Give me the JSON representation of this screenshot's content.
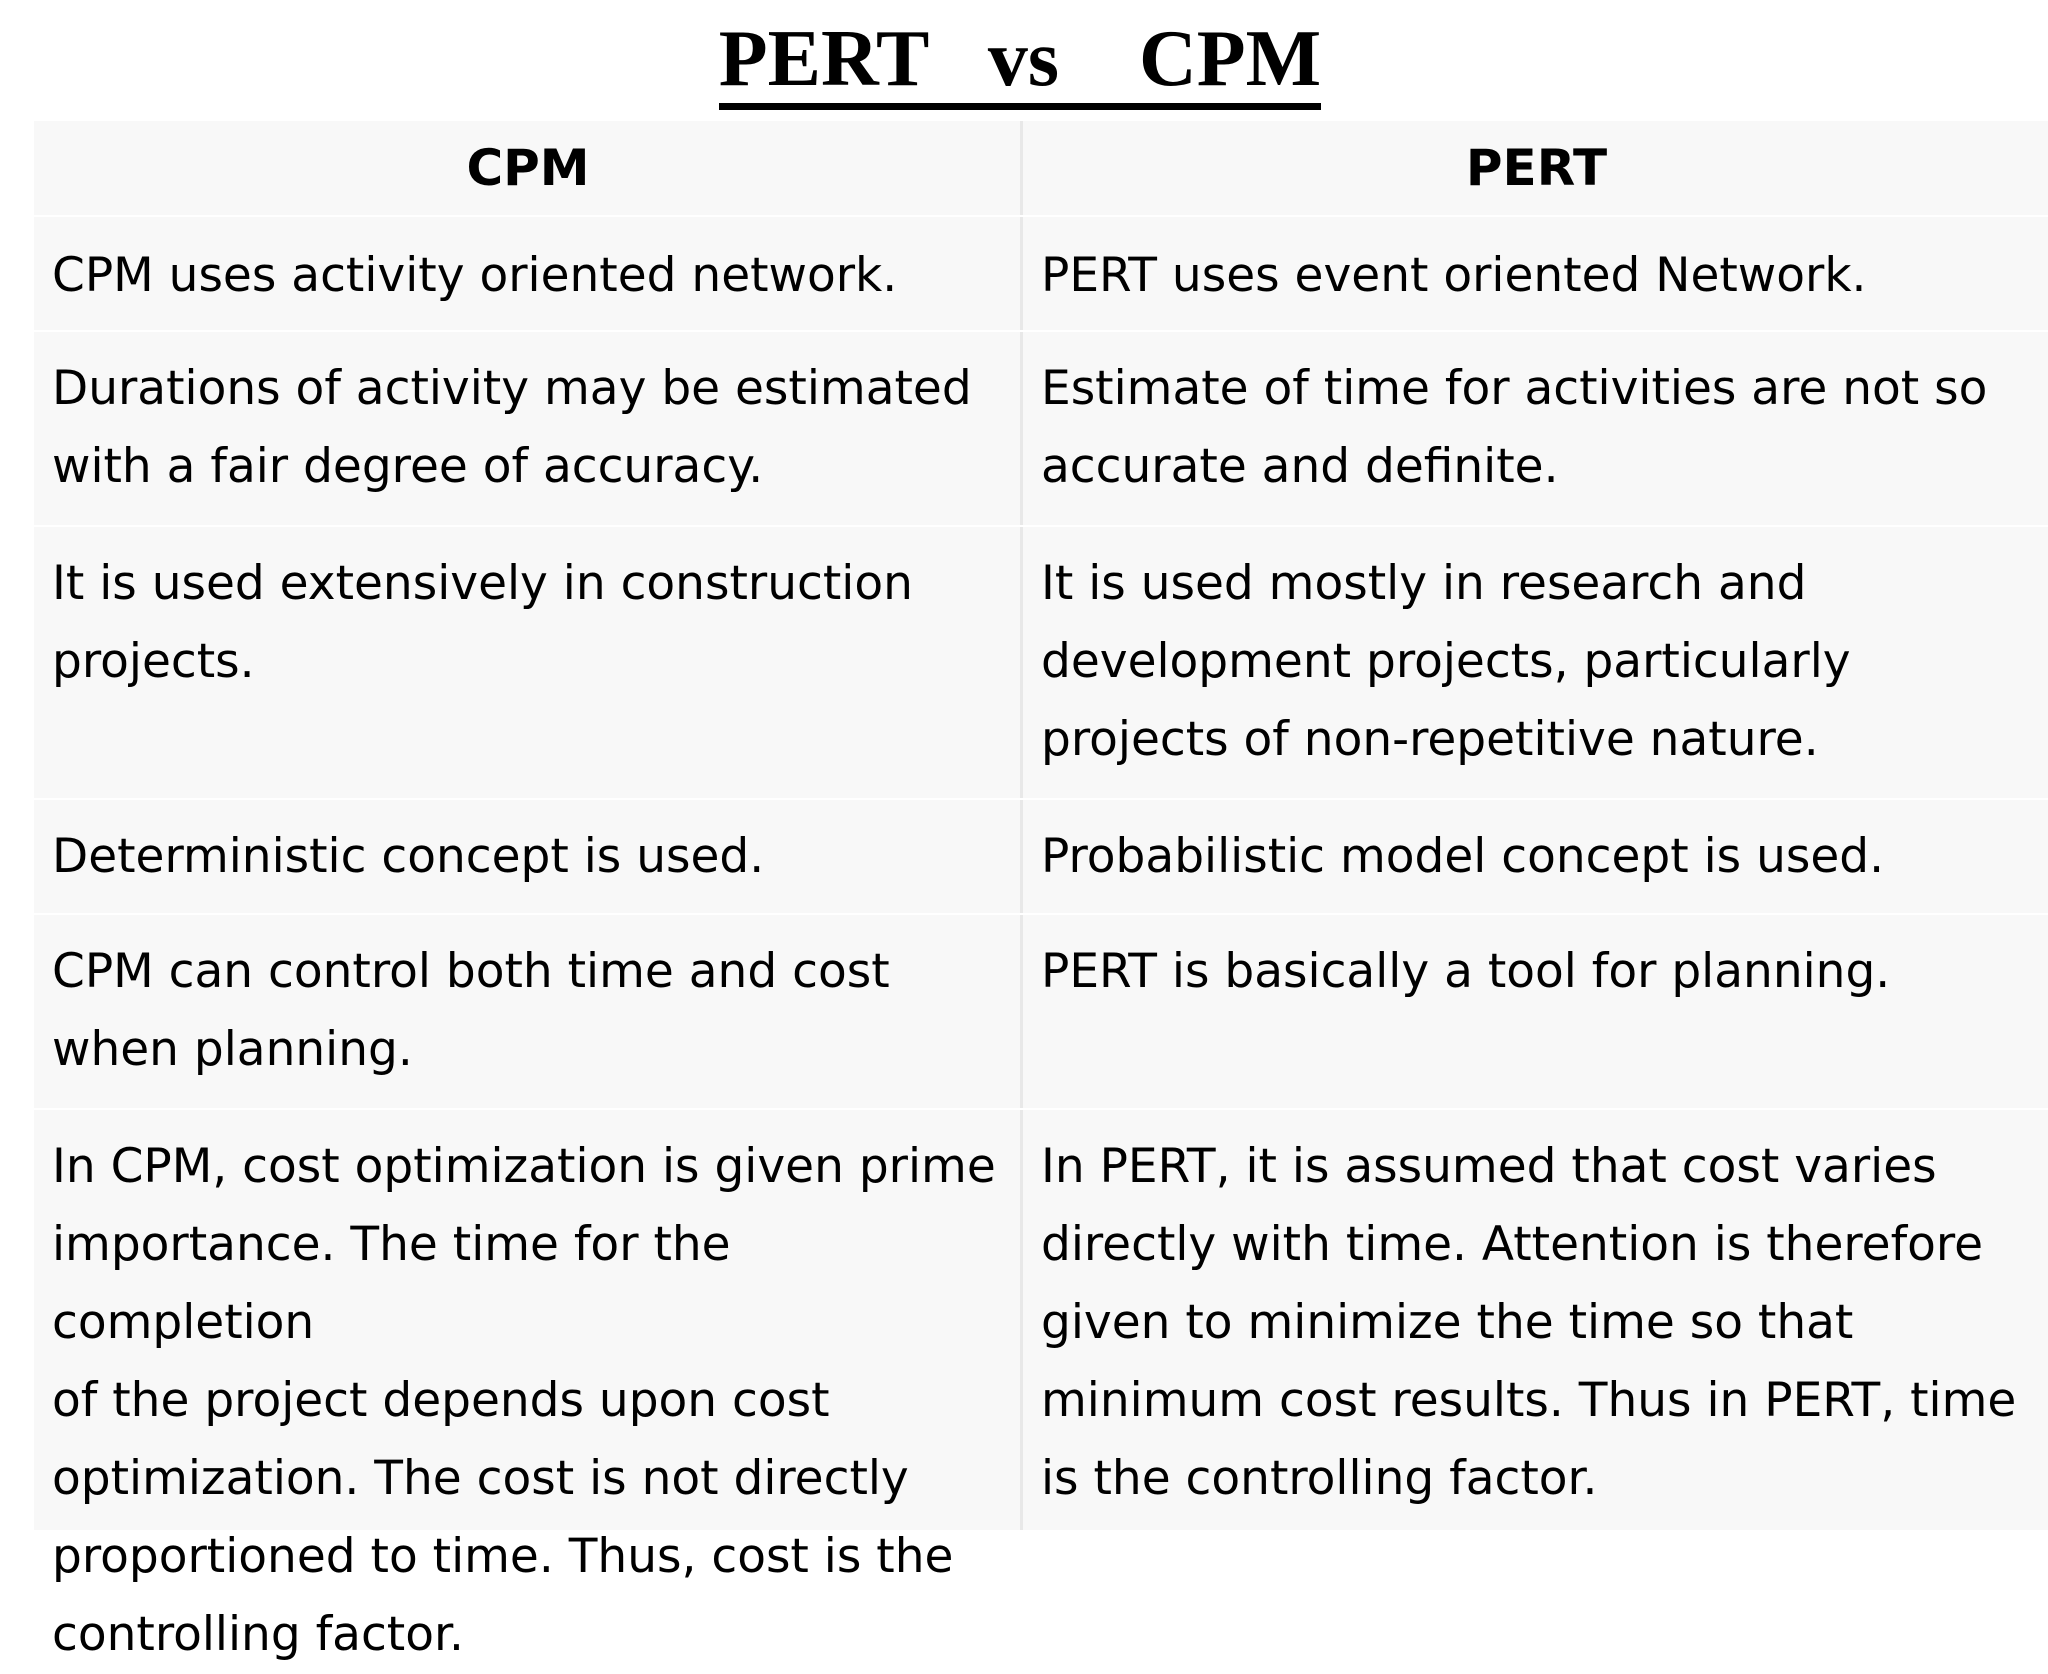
{
  "title": "PERT   vs    CPM",
  "table": {
    "headers": {
      "left": "CPM",
      "right": "PERT"
    },
    "rows": [
      {
        "left": "CPM uses activity oriented network.",
        "right": "PERT uses event oriented Network."
      },
      {
        "left": "Durations of activity may be estimated\nwith a fair degree of accuracy.",
        "right": "Estimate of time for activities are not so\naccurate and definite."
      },
      {
        "left": "It is used extensively in construction\nprojects.",
        "right": "It is used mostly in research and\ndevelopment projects, particularly\nprojects of non-repetitive nature."
      },
      {
        "left": "Deterministic concept is used.",
        "right": "Probabilistic model concept is used."
      },
      {
        "left": "CPM can control both time and cost\nwhen planning.",
        "right": "PERT is basically a tool for planning."
      },
      {
        "left": "In CPM, cost optimization is given prime\nimportance. The time for the completion\nof the project depends upon cost\noptimization. The cost is not directly\nproportioned to time. Thus, cost is the\ncontrolling factor.",
        "right": "In PERT, it is assumed that cost varies\ndirectly with time. Attention is therefore\ngiven to minimize the time so that\nminimum cost results. Thus in PERT, time\nis the controlling factor."
      }
    ]
  }
}
